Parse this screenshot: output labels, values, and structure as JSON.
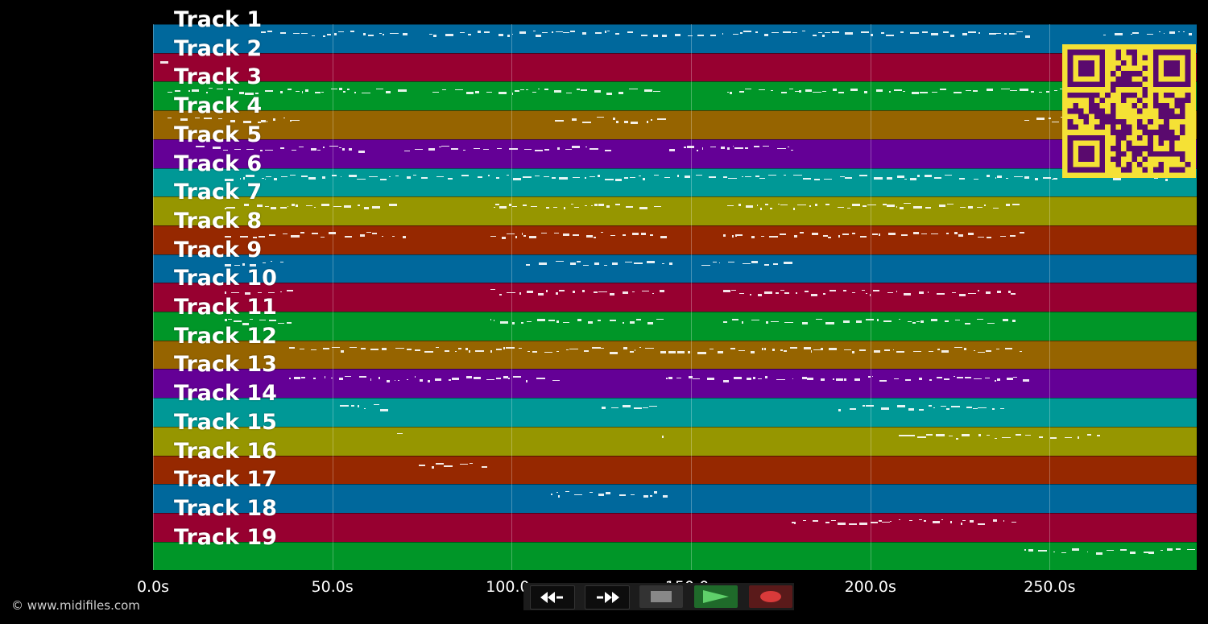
{
  "tracks": [
    {
      "label": "Track 1",
      "color": "#00689c"
    },
    {
      "label": "Track 2",
      "color": "#970030"
    },
    {
      "label": "Track 3",
      "color": "#009628"
    },
    {
      "label": "Track 4",
      "color": "#966400"
    },
    {
      "label": "Track 5",
      "color": "#640096"
    },
    {
      "label": "Track 6",
      "color": "#009896"
    },
    {
      "label": "Track 7",
      "color": "#969600"
    },
    {
      "label": "Track 8",
      "color": "#962800"
    },
    {
      "label": "Track 9",
      "color": "#00689c"
    },
    {
      "label": "Track 10",
      "color": "#970030"
    },
    {
      "label": "Track 11",
      "color": "#009628"
    },
    {
      "label": "Track 12",
      "color": "#966400"
    },
    {
      "label": "Track 13",
      "color": "#640096"
    },
    {
      "label": "Track 14",
      "color": "#009896"
    },
    {
      "label": "Track 15",
      "color": "#969600"
    },
    {
      "label": "Track 16",
      "color": "#962800"
    },
    {
      "label": "Track 17",
      "color": "#00689c"
    },
    {
      "label": "Track 18",
      "color": "#970030"
    },
    {
      "label": "Track 19",
      "color": "#009628"
    }
  ],
  "time_axis": {
    "ticks": [
      "0.0s",
      "50.0s",
      "100.0s",
      "150.0s",
      "200.0s",
      "250.0s"
    ],
    "tick_seconds": [
      0,
      50,
      100,
      150,
      200,
      250
    ],
    "max_seconds": 291
  },
  "copyright": "© www.midifiles.com",
  "qr_code": {
    "icon": "qr-code-icon",
    "fg": "#5a0a6e",
    "bg": "#f5e135"
  },
  "controls": [
    {
      "name": "rewind-button",
      "icon": "rewind-icon"
    },
    {
      "name": "fast-forward-button",
      "icon": "fast-forward-icon"
    },
    {
      "name": "stop-button",
      "icon": "stop-icon"
    },
    {
      "name": "play-button",
      "icon": "play-icon"
    },
    {
      "name": "record-button",
      "icon": "record-icon"
    }
  ]
}
